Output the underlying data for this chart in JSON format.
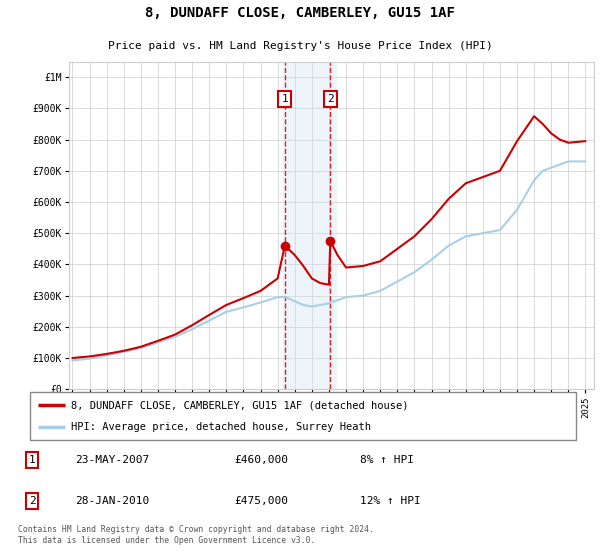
{
  "title": "8, DUNDAFF CLOSE, CAMBERLEY, GU15 1AF",
  "subtitle": "Price paid vs. HM Land Registry's House Price Index (HPI)",
  "legend_line1": "8, DUNDAFF CLOSE, CAMBERLEY, GU15 1AF (detached house)",
  "legend_line2": "HPI: Average price, detached house, Surrey Heath",
  "transaction1_date": "23-MAY-2007",
  "transaction1_price": "£460,000",
  "transaction1_hpi": "8% ↑ HPI",
  "transaction2_date": "28-JAN-2010",
  "transaction2_price": "£475,000",
  "transaction2_hpi": "12% ↑ HPI",
  "footer": "Contains HM Land Registry data © Crown copyright and database right 2024.\nThis data is licensed under the Open Government Licence v3.0.",
  "hpi_color": "#a8cfe8",
  "price_color": "#cc0000",
  "transaction_box_color": "#cc0000",
  "shade_color": "#cde4f5",
  "ylim": [
    0,
    1050000
  ],
  "yticks": [
    0,
    100000,
    200000,
    300000,
    400000,
    500000,
    600000,
    700000,
    800000,
    900000,
    1000000
  ],
  "ytick_labels": [
    "£0",
    "£100K",
    "£200K",
    "£300K",
    "£400K",
    "£500K",
    "£600K",
    "£700K",
    "£800K",
    "£900K",
    "£1M"
  ],
  "years": [
    1995,
    1996,
    1997,
    1998,
    1999,
    2000,
    2001,
    2002,
    2003,
    2004,
    2005,
    2006,
    2007,
    2007.42,
    2008,
    2008.5,
    2009,
    2009.5,
    2010,
    2010.08,
    2010.5,
    2011,
    2012,
    2013,
    2014,
    2015,
    2016,
    2017,
    2018,
    2019,
    2020,
    2021,
    2022,
    2022.5,
    2023,
    2023.5,
    2024,
    2025
  ],
  "hpi_values": [
    92000,
    98000,
    108000,
    120000,
    132000,
    150000,
    168000,
    192000,
    220000,
    248000,
    262000,
    278000,
    295000,
    296000,
    282000,
    270000,
    265000,
    270000,
    275000,
    278000,
    285000,
    295000,
    300000,
    315000,
    345000,
    375000,
    415000,
    460000,
    490000,
    500000,
    510000,
    575000,
    670000,
    700000,
    710000,
    720000,
    730000,
    730000
  ],
  "price_values": [
    100000,
    105000,
    113000,
    123000,
    136000,
    155000,
    175000,
    205000,
    238000,
    270000,
    292000,
    315000,
    355000,
    460000,
    430000,
    395000,
    355000,
    340000,
    335000,
    475000,
    430000,
    390000,
    395000,
    410000,
    450000,
    490000,
    545000,
    610000,
    660000,
    680000,
    700000,
    795000,
    875000,
    850000,
    820000,
    800000,
    790000,
    795000
  ],
  "transaction1_x": 2007.42,
  "transaction1_y": 460000,
  "transaction2_x": 2010.08,
  "transaction2_y": 475000,
  "shade_x1": 2007.3,
  "shade_x2": 2010.5,
  "background_color": "#ffffff",
  "grid_color": "#cccccc",
  "xlim_left": 1994.8,
  "xlim_right": 2025.5
}
